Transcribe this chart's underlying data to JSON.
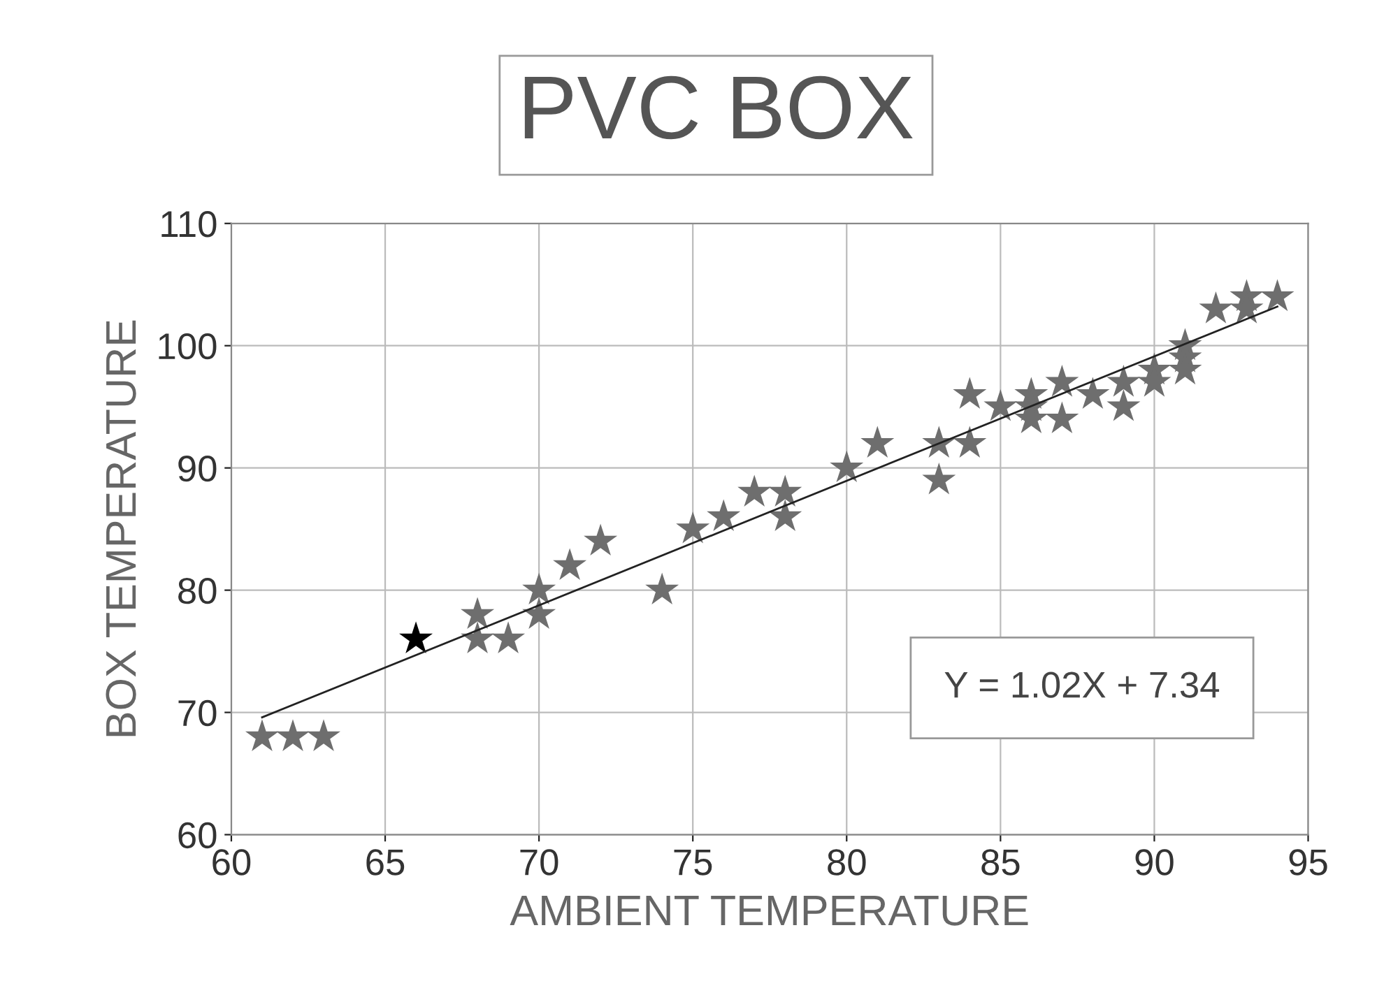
{
  "chart_data": {
    "type": "scatter",
    "title": "PVC BOX",
    "xlabel": "AMBIENT TEMPERATURE",
    "ylabel": "BOX TEMPERATURE",
    "annotations": [
      "Y = 1.02X + 7.34"
    ],
    "marker": "star",
    "grid": true,
    "xlim": [
      60,
      95
    ],
    "xticks": [
      60,
      65,
      70,
      75,
      80,
      85,
      90,
      95
    ],
    "ylim": [
      60,
      110
    ],
    "yticks": [
      60,
      70,
      80,
      90,
      100,
      110
    ],
    "series": [
      {
        "type": "line",
        "color": "#222222",
        "marker": "none",
        "x": [
          61,
          94
        ],
        "values": [
          69.6,
          103.2
        ]
      },
      {
        "color": "#6e6e6e",
        "x": [
          61,
          62,
          63,
          68,
          68,
          69,
          70,
          70,
          71,
          72,
          74,
          75,
          76,
          77,
          78,
          78,
          80,
          81,
          83,
          83,
          84,
          84,
          85,
          86,
          86,
          86,
          87,
          87,
          88,
          89,
          89,
          90,
          90,
          91,
          91,
          91,
          92,
          93,
          93,
          94
        ],
        "values": [
          68,
          68,
          68,
          78,
          76,
          76,
          80,
          78,
          82,
          84,
          80,
          85,
          86,
          88,
          88,
          86,
          90,
          92,
          92,
          89,
          96,
          92,
          95,
          96,
          95,
          94,
          97,
          94,
          96,
          97,
          95,
          98,
          97,
          100,
          99,
          98,
          103,
          104,
          103,
          104
        ]
      },
      {
        "color": "#000000",
        "x": [
          66
        ],
        "values": [
          76
        ]
      }
    ]
  }
}
